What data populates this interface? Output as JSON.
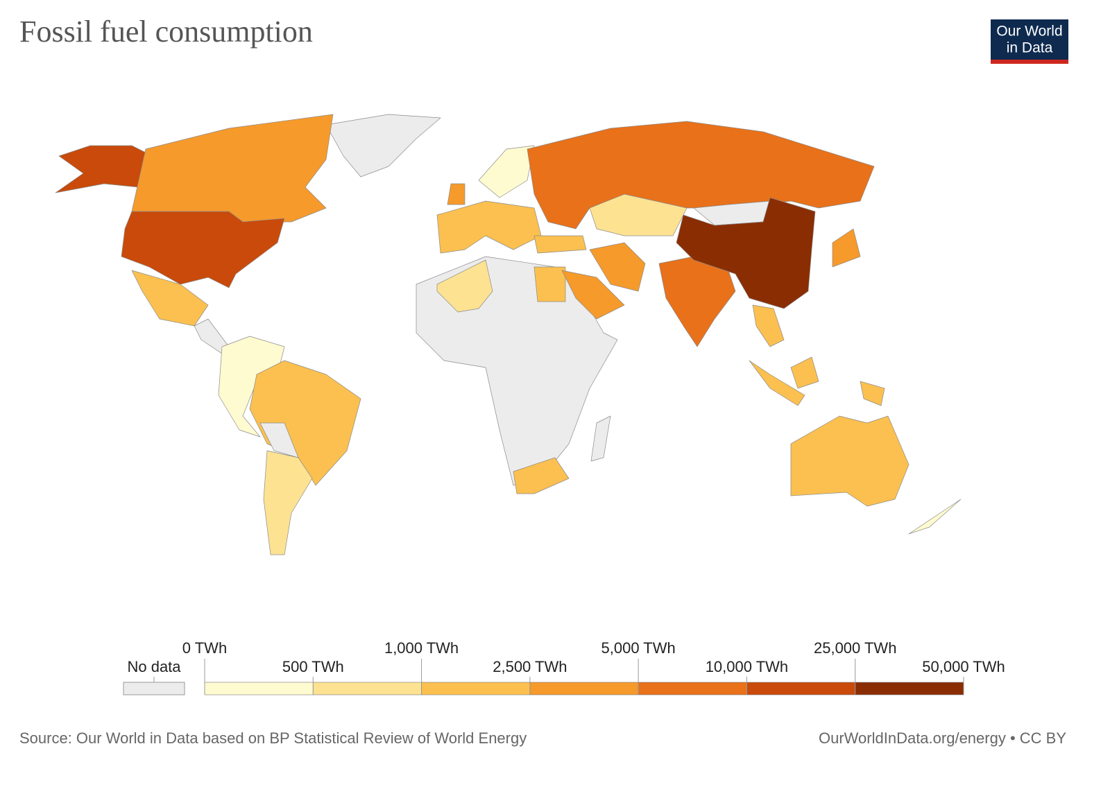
{
  "header": {
    "title": "Fossil fuel consumption",
    "logo": [
      "Our World",
      "in Data"
    ]
  },
  "chart_data": {
    "type": "choropleth",
    "no_data": {
      "label": "No data",
      "color": "#ececec"
    },
    "ticks": [
      {
        "value": 0,
        "label": "0 TWh"
      },
      {
        "value": 500,
        "label": "500 TWh"
      },
      {
        "value": 1000,
        "label": "1,000 TWh"
      },
      {
        "value": 2500,
        "label": "2,500 TWh"
      },
      {
        "value": 5000,
        "label": "5,000 TWh"
      },
      {
        "value": 10000,
        "label": "10,000 TWh"
      },
      {
        "value": 25000,
        "label": "25,000 TWh"
      },
      {
        "value": 50000,
        "label": "50,000 TWh"
      }
    ],
    "colors": [
      "#fffbd0",
      "#fde292",
      "#fbc04f",
      "#f69a2b",
      "#e8711a",
      "#c94a0a",
      "#8b2d02"
    ]
  },
  "footer": {
    "source": "Source: Our World in Data based on BP Statistical Review of World Energy",
    "link": "OurWorldInData.org/energy • CC BY"
  }
}
